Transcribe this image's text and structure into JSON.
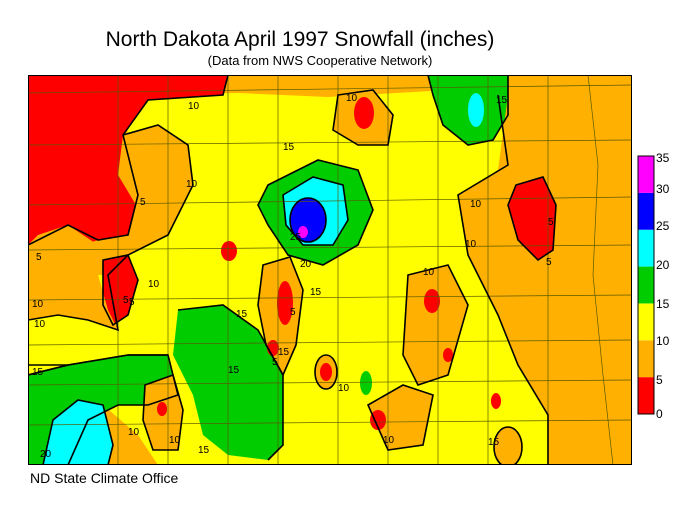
{
  "title": "North Dakota April 1997 Snowfall (inches)",
  "subtitle": "(Data from NWS Cooperative Network)",
  "credit": "ND State Climate Office",
  "legend": {
    "ticks": [
      "0",
      "5",
      "10",
      "15",
      "20",
      "25",
      "30",
      "35"
    ],
    "colors": [
      "#ff0000",
      "#ffb000",
      "#ffff00",
      "#00cc00",
      "#00ffff",
      "#0000ff",
      "#ff00ff"
    ]
  },
  "contour_labels": {
    "l1": "10",
    "l2": "5",
    "l3": "15",
    "l4": "10",
    "l5": "5",
    "l6": "15",
    "l7": "10",
    "l8": "5",
    "l9": "10",
    "l10": "25",
    "l11": "20",
    "l12": "15",
    "l13": "10",
    "l14": "15",
    "l15": "10",
    "l16": "15",
    "l17": "5",
    "l18": "10",
    "l19": "20",
    "l20": "15",
    "l21": "10",
    "l22": "5",
    "l23": "10",
    "l24": "15",
    "l25": "5",
    "l26": "15",
    "l27": "10",
    "l28": "10",
    "l29": "10",
    "l30": "15",
    "l31": "5",
    "l32": "10",
    "l33": "5"
  }
}
